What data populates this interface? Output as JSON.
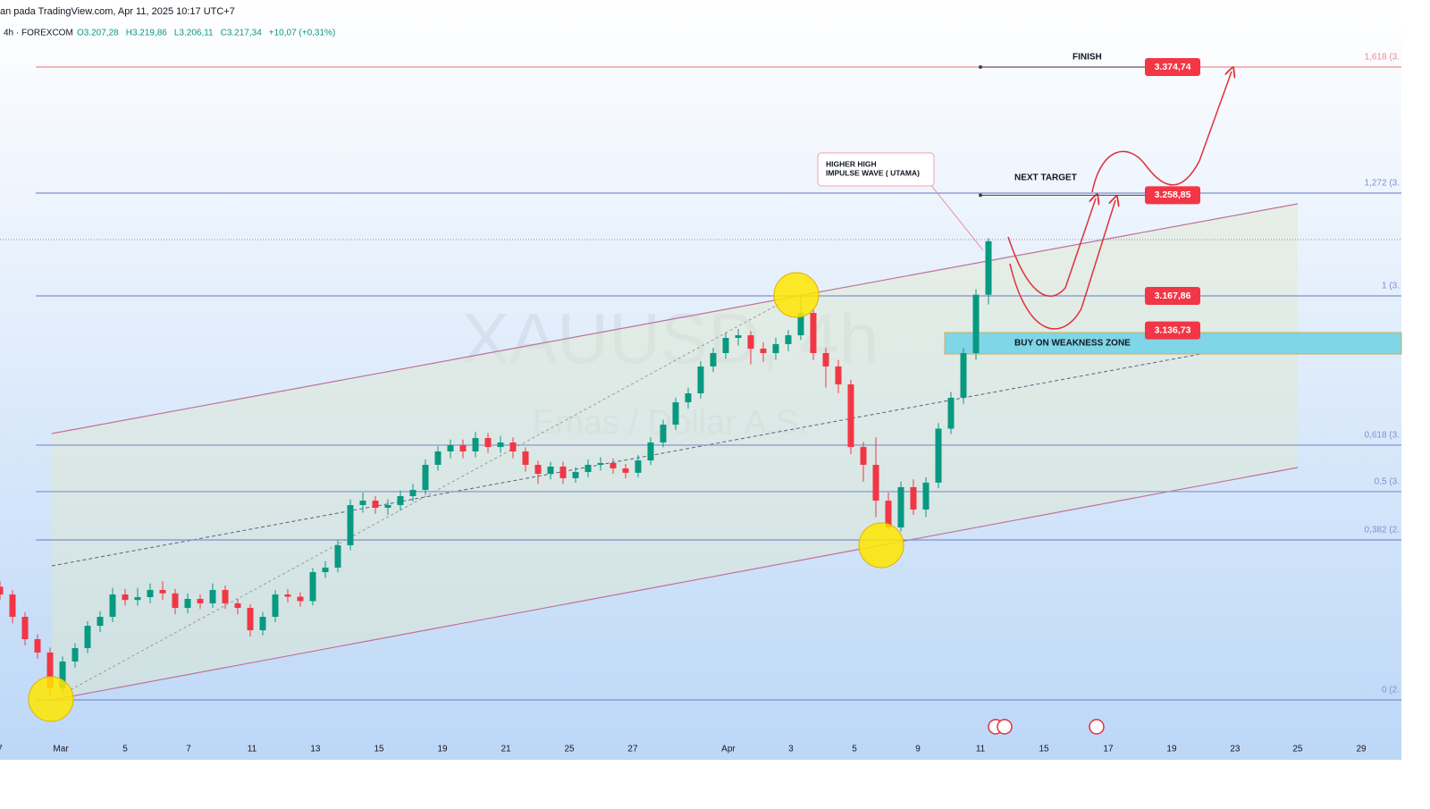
{
  "chart_data": {
    "type": "candlestick",
    "header": "an pada TradingView.com, Apr 11, 2025 10:17 UTC+7",
    "symbol": "4h · FOREXCOM",
    "ohlc_header": [
      "O3.207,28",
      "H3.219,86",
      "L3.206,11",
      "C3.217,34",
      "+10,07 (+0,31%)"
    ],
    "watermark": "XAUUSD, 4h",
    "watermark_sub": "Emas / Dollar A.S.",
    "annotations": [
      "FINISH",
      "NEXT TARGET",
      "HIGHER HIGH",
      "IMPULSE WAVE ( UTAMA)",
      "BUY ON WEAKNESS ZONE"
    ],
    "up_color": "#089981",
    "down_color": "#f23645",
    "xlim": [
      0,
      112
    ],
    "ylim": [
      2748.54,
      3435.34
    ],
    "xticks": [
      {
        "value": 0,
        "label": "7"
      },
      {
        "value": 4.86,
        "label": "Mar"
      },
      {
        "value": 10,
        "label": "5"
      },
      {
        "value": 15.07,
        "label": "7"
      },
      {
        "value": 20.14,
        "label": "11"
      },
      {
        "value": 25.21,
        "label": "13"
      },
      {
        "value": 30.29,
        "label": "15"
      },
      {
        "value": 35.36,
        "label": "19"
      },
      {
        "value": 40.43,
        "label": "21"
      },
      {
        "value": 45.5,
        "label": "25"
      },
      {
        "value": 50.57,
        "label": "27"
      },
      {
        "value": 58.21,
        "label": "Apr"
      },
      {
        "value": 63.21,
        "label": "3"
      },
      {
        "value": 68.29,
        "label": "5"
      },
      {
        "value": 73.36,
        "label": "9"
      },
      {
        "value": 78.36,
        "label": "11"
      },
      {
        "value": 83.43,
        "label": "15"
      },
      {
        "value": 88.57,
        "label": "17"
      },
      {
        "value": 93.64,
        "label": "19"
      },
      {
        "value": 98.71,
        "label": "23"
      },
      {
        "value": 103.71,
        "label": "25"
      },
      {
        "value": 108.79,
        "label": "29"
      }
    ],
    "levels": [
      {
        "label": "1,618 (3.",
        "value": 3374.74,
        "color": "#f08a8a"
      },
      {
        "label": "1,272 (3.",
        "value": 3260.8,
        "color": "#7f8fcf"
      },
      {
        "label": "1 (3.",
        "value": 3167.9,
        "color": "#7f8fcf"
      },
      {
        "label": "0,618 (3.",
        "value": 3033.0,
        "color": "#7f8fcf"
      },
      {
        "label": "0,5 (3.",
        "value": 2991.0,
        "color": "#7f8fcf"
      },
      {
        "label": "0,382 (2.",
        "value": 2947.3,
        "color": "#7f8fcf"
      },
      {
        "label": "0 (2.",
        "value": 2802.7,
        "color": "#7f8fcf"
      }
    ],
    "price_tags": [
      {
        "label": "3.374,74",
        "value": 3374.74
      },
      {
        "label": "3.258,85",
        "value": 3258.85
      },
      {
        "label": "3.167,86",
        "value": 3167.86
      },
      {
        "label": "3.136,73",
        "value": 3136.73
      }
    ],
    "open": [
      2905.0,
      2898.0,
      2877.8,
      2857.6,
      2845.5,
      2813.2,
      2837.4,
      2849.5,
      2869.7,
      2877.8,
      2898.0,
      2893.0,
      2895.6,
      2902.1,
      2899.0,
      2885.9,
      2894.0,
      2890.0,
      2902.1,
      2890.0,
      2885.9,
      2865.7,
      2877.8,
      2898.0,
      2896.0,
      2892.0,
      2918.2,
      2922.3,
      2942.5,
      2978.8,
      2982.8,
      2976.4,
      2978.8,
      2986.9,
      2992.5,
      3015.2,
      3027.3,
      3032.9,
      3027.3,
      3039.4,
      3031.3,
      3035.4,
      3027.3,
      3015.2,
      3007.1,
      3013.6,
      3003.1,
      3008.7,
      3015.2,
      3016.8,
      3012.0,
      3008.0,
      3019.2,
      3035.4,
      3051.5,
      3071.7,
      3079.8,
      3104.1,
      3116.2,
      3129.9,
      3132.3,
      3120.2,
      3116.2,
      3124.3,
      3132.3,
      3152.5,
      3116.2,
      3104.1,
      3087.9,
      3031.3,
      3015.2,
      2982.8,
      2958.6,
      2995.0,
      2974.8,
      2999.1,
      3047.9,
      3075.8,
      3116.2,
      3168.9
    ],
    "high": [
      2910,
      2902,
      2882,
      2862,
      2850,
      2842,
      2854,
      2874,
      2883,
      2904,
      2903,
      2904,
      2908,
      2910,
      2903,
      2899,
      2898,
      2908,
      2906,
      2894,
      2889,
      2882,
      2902,
      2903,
      2900,
      2922,
      2928,
      2947,
      2984,
      2990,
      2987,
      2984,
      2992,
      2998,
      3020,
      3032,
      3038,
      3038,
      3045,
      3044,
      3041,
      3040,
      3031,
      3019,
      3018,
      3018,
      3013,
      3020,
      3022,
      3021,
      3016,
      3024,
      3040,
      3056,
      3076,
      3085,
      3109,
      3121,
      3135,
      3138,
      3136,
      3126,
      3130,
      3137,
      3167.9,
      3156,
      3121,
      3110,
      3092,
      3036,
      3040,
      2990,
      3000,
      3002,
      3004,
      3053,
      3081,
      3121,
      3174,
      3219.9
    ],
    "low": [
      2893,
      2872,
      2852,
      2840,
      2806,
      2808,
      2832,
      2845,
      2864,
      2873,
      2888,
      2888,
      2890,
      2893,
      2880,
      2881,
      2885,
      2886,
      2885,
      2880,
      2860,
      2861,
      2873,
      2891,
      2887,
      2888,
      2913,
      2918,
      2938,
      2972,
      2971,
      2970,
      2974,
      2982,
      2988,
      3010,
      3021,
      3021,
      3022,
      3026,
      3026,
      3021,
      3009,
      2998,
      3002,
      2998,
      2999,
      3004,
      3010,
      3007,
      3003,
      3004,
      3015,
      3031,
      3047,
      3066,
      3075,
      3099,
      3111,
      3123,
      3106,
      3108,
      3110,
      3118,
      3128,
      3110,
      3085,
      3080,
      3025,
      3000,
      2968,
      2956,
      2955,
      2970,
      2968,
      2994,
      3043,
      3070,
      3110,
      3160
    ],
    "close": [
      2898.0,
      2877.8,
      2857.6,
      2845.5,
      2813.2,
      2837.4,
      2849.5,
      2869.7,
      2877.8,
      2898.0,
      2893.0,
      2895.6,
      2902.1,
      2899.0,
      2885.9,
      2894.0,
      2890.0,
      2902.1,
      2890.0,
      2885.9,
      2865.7,
      2877.8,
      2898.0,
      2896.0,
      2892.0,
      2918.2,
      2922.3,
      2942.5,
      2978.8,
      2982.8,
      2976.4,
      2978.8,
      2986.9,
      2992.5,
      3015.2,
      3027.3,
      3032.9,
      3027.3,
      3039.4,
      3031.3,
      3035.4,
      3027.3,
      3015.2,
      3007.1,
      3013.6,
      3003.1,
      3008.7,
      3015.2,
      3016.8,
      3012.0,
      3008.0,
      3019.2,
      3035.4,
      3051.5,
      3071.7,
      3079.8,
      3104.1,
      3116.2,
      3129.9,
      3132.3,
      3120.2,
      3116.2,
      3124.3,
      3132.3,
      3152.5,
      3116.2,
      3104.1,
      3087.9,
      3031.3,
      3015.2,
      2982.8,
      2958.6,
      2995.0,
      2974.8,
      2999.1,
      3047.9,
      3075.8,
      3116.2,
      3168.9,
      3217.3
    ]
  }
}
